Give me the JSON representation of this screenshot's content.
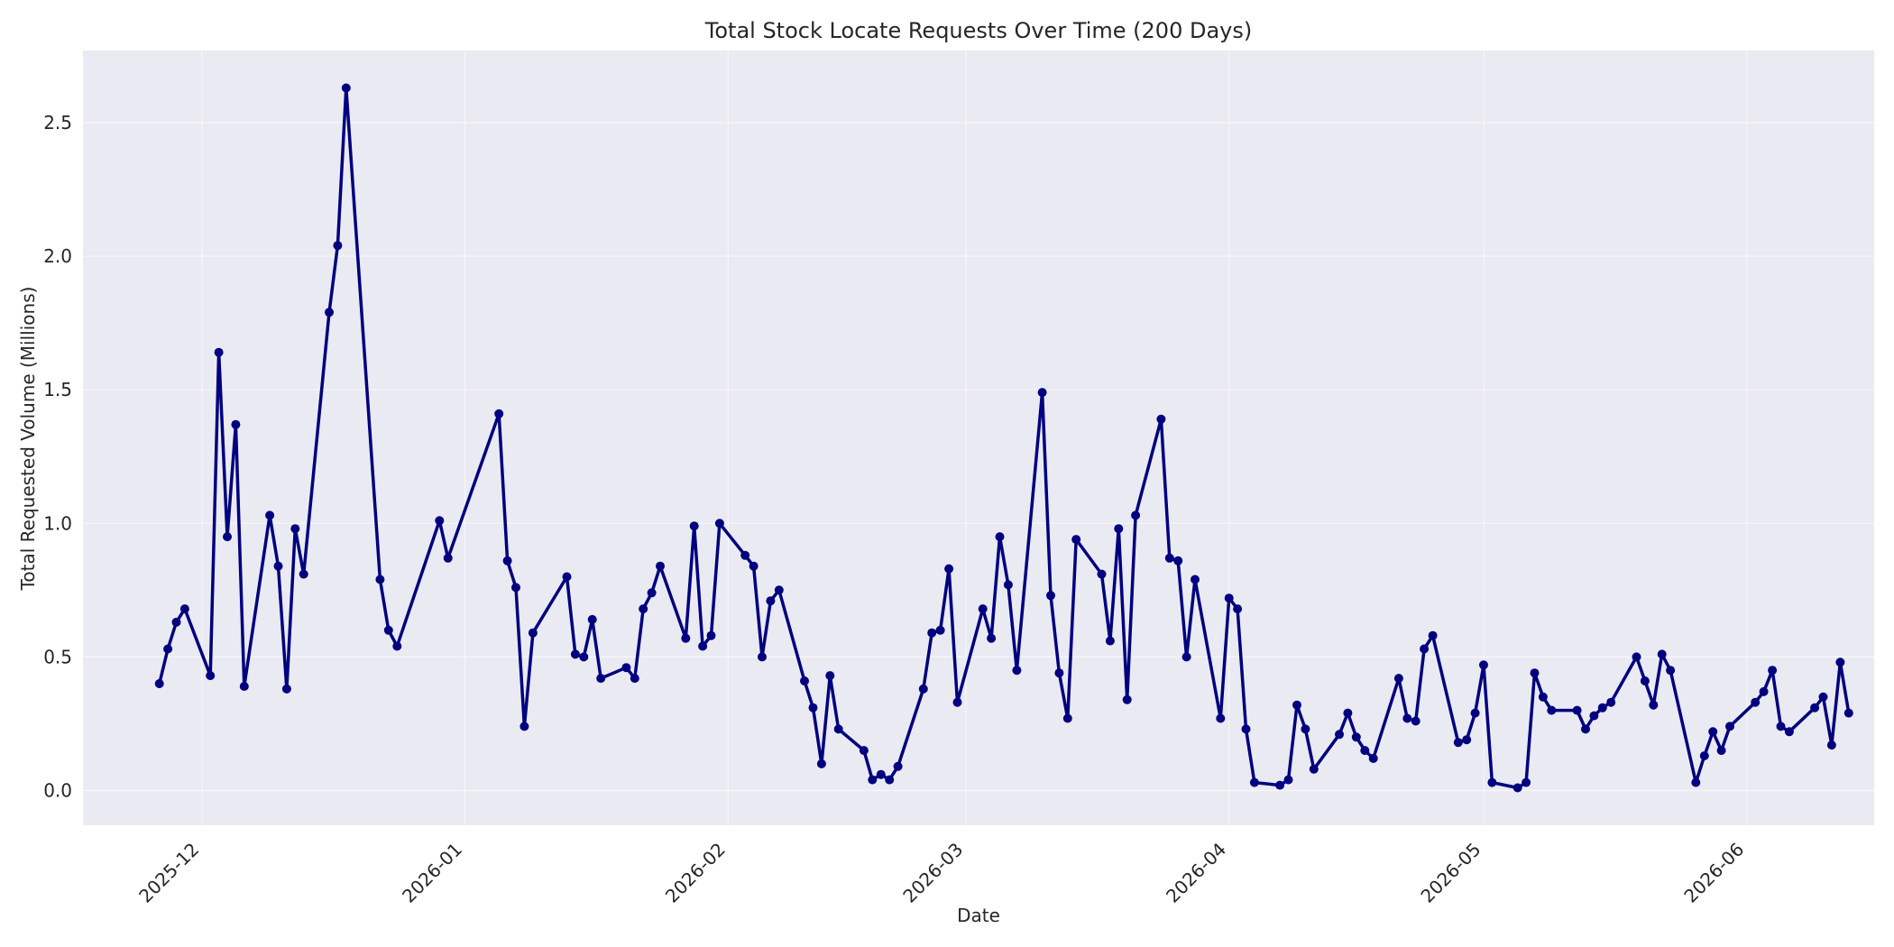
{
  "chart_data": {
    "type": "line",
    "title": "Total Stock Locate Requests Over Time (200 Days)",
    "xlabel": "Date",
    "ylabel": "Total Requested Volume (Millions)",
    "x_ticks": [
      "2025-12",
      "2026-01",
      "2026-02",
      "2026-03",
      "2026-04",
      "2026-05",
      "2026-06"
    ],
    "y_ticks": [
      "0.0",
      "0.5",
      "1.0",
      "1.5",
      "2.0",
      "2.5"
    ],
    "xlim": [
      "2025-11-17",
      "2026-06-16"
    ],
    "ylim": [
      -0.13,
      2.77
    ],
    "grid": true,
    "colors": {
      "series": "#000080",
      "plot_background": "#eaeaf2",
      "grid": "#ffffff"
    },
    "series": [
      {
        "x": [
          "2025-11-26",
          "2025-11-27",
          "2025-11-28",
          "2025-11-29",
          "2025-12-02",
          "2025-12-03",
          "2025-12-04",
          "2025-12-05",
          "2025-12-06",
          "2025-12-09",
          "2025-12-10",
          "2025-12-11",
          "2025-12-12",
          "2025-12-13",
          "2025-12-16",
          "2025-12-17",
          "2025-12-18",
          "2025-12-22",
          "2025-12-23",
          "2025-12-24",
          "2025-12-29",
          "2025-12-30",
          "2026-01-05",
          "2026-01-06",
          "2026-01-07",
          "2026-01-08",
          "2026-01-09",
          "2026-01-13",
          "2026-01-14",
          "2026-01-15",
          "2026-01-16",
          "2026-01-17",
          "2026-01-20",
          "2026-01-21",
          "2026-01-22",
          "2026-01-23",
          "2026-01-24",
          "2026-01-27",
          "2026-01-28",
          "2026-01-29",
          "2026-01-30",
          "2026-01-31",
          "2026-02-03",
          "2026-02-04",
          "2026-02-05",
          "2026-02-06",
          "2026-02-07",
          "2026-02-10",
          "2026-02-11",
          "2026-02-12",
          "2026-02-13",
          "2026-02-14",
          "2026-02-17",
          "2026-02-18",
          "2026-02-19",
          "2026-02-20",
          "2026-02-21",
          "2026-02-24",
          "2026-02-25",
          "2026-02-26",
          "2026-02-27",
          "2026-02-28",
          "2026-03-03",
          "2026-03-04",
          "2026-03-05",
          "2026-03-06",
          "2026-03-07",
          "2026-03-10",
          "2026-03-11",
          "2026-03-12",
          "2026-03-13",
          "2026-03-14",
          "2026-03-17",
          "2026-03-18",
          "2026-03-19",
          "2026-03-20",
          "2026-03-21",
          "2026-03-24",
          "2026-03-25",
          "2026-03-26",
          "2026-03-27",
          "2026-03-28",
          "2026-03-31",
          "2026-04-01",
          "2026-04-02",
          "2026-04-03",
          "2026-04-04",
          "2026-04-07",
          "2026-04-08",
          "2026-04-09",
          "2026-04-10",
          "2026-04-11",
          "2026-04-14",
          "2026-04-15",
          "2026-04-16",
          "2026-04-17",
          "2026-04-18",
          "2026-04-21",
          "2026-04-22",
          "2026-04-23",
          "2026-04-24",
          "2026-04-25",
          "2026-04-28",
          "2026-04-29",
          "2026-04-30",
          "2026-05-01",
          "2026-05-02",
          "2026-05-05",
          "2026-05-06",
          "2026-05-07",
          "2026-05-08",
          "2026-05-09",
          "2026-05-12",
          "2026-05-13",
          "2026-05-14",
          "2026-05-15",
          "2026-05-16",
          "2026-05-19",
          "2026-05-20",
          "2026-05-21",
          "2026-05-22",
          "2026-05-23",
          "2026-05-26",
          "2026-05-27",
          "2026-05-28",
          "2026-05-29",
          "2026-05-30",
          "2026-06-02",
          "2026-06-03",
          "2026-06-04",
          "2026-06-05",
          "2026-06-06",
          "2026-06-09",
          "2026-06-10",
          "2026-06-11",
          "2026-06-12",
          "2026-06-13"
        ],
        "values": [
          0.4,
          0.53,
          0.63,
          0.68,
          0.43,
          1.64,
          0.95,
          1.37,
          0.39,
          1.03,
          0.84,
          0.38,
          0.98,
          0.81,
          1.79,
          2.04,
          2.63,
          0.79,
          0.6,
          0.54,
          1.01,
          0.87,
          1.41,
          0.86,
          0.76,
          0.24,
          0.59,
          0.8,
          0.51,
          0.5,
          0.64,
          0.42,
          0.46,
          0.42,
          0.68,
          0.74,
          0.84,
          0.57,
          0.99,
          0.54,
          0.58,
          1.0,
          0.88,
          0.84,
          0.5,
          0.71,
          0.75,
          0.41,
          0.31,
          0.1,
          0.43,
          0.23,
          0.15,
          0.04,
          0.06,
          0.04,
          0.09,
          0.38,
          0.59,
          0.6,
          0.83,
          0.33,
          0.68,
          0.57,
          0.95,
          0.77,
          0.45,
          1.49,
          0.73,
          0.44,
          0.27,
          0.94,
          0.81,
          0.56,
          0.98,
          0.34,
          1.03,
          1.39,
          0.87,
          0.86,
          0.5,
          0.79,
          0.27,
          0.72,
          0.68,
          0.23,
          0.03,
          0.02,
          0.04,
          0.32,
          0.23,
          0.08,
          0.21,
          0.29,
          0.2,
          0.15,
          0.12,
          0.42,
          0.27,
          0.26,
          0.53,
          0.58,
          0.18,
          0.19,
          0.29,
          0.47,
          0.03,
          0.01,
          0.03,
          0.44,
          0.35,
          0.3,
          0.3,
          0.23,
          0.28,
          0.31,
          0.33,
          0.5,
          0.41,
          0.32,
          0.51,
          0.45,
          0.03,
          0.13,
          0.22,
          0.15,
          0.24,
          0.33,
          0.37,
          0.45,
          0.24,
          0.22,
          0.31,
          0.35,
          0.17,
          0.48,
          0.29
        ]
      }
    ]
  }
}
